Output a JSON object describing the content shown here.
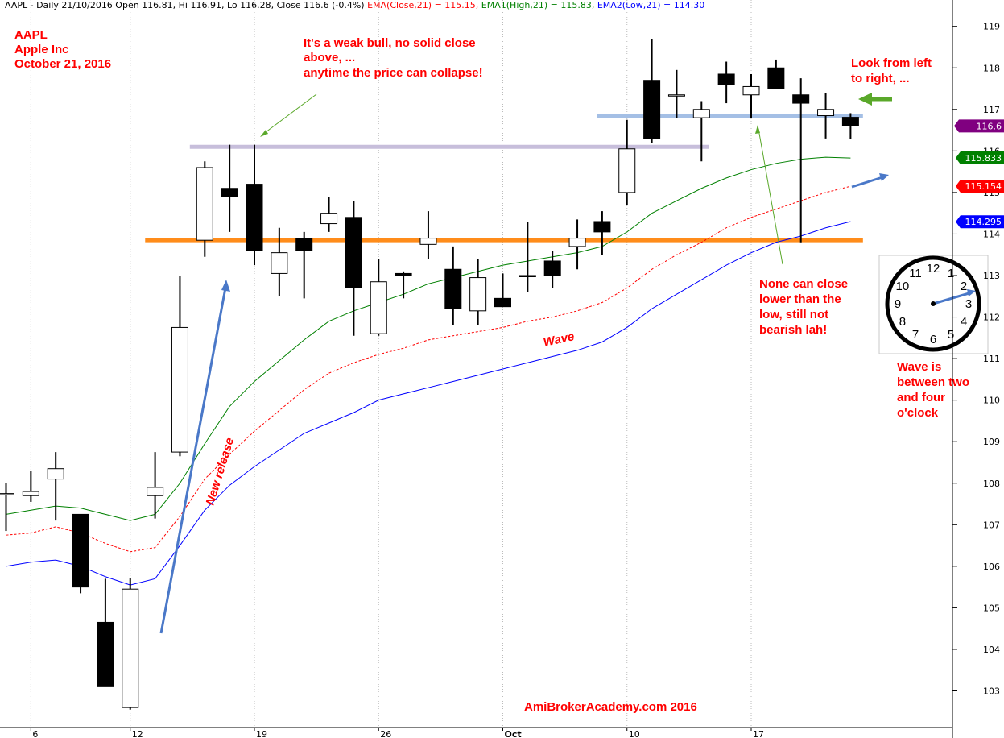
{
  "header": {
    "title": "AAPL - Daily 21/10/2016 Open 116.81, Hi 116.91, Lo 116.28, Close 116.6 (-0.4%)",
    "ema_close": "EMA(Close,21) = 115.15,",
    "ema_high": "EMA1(High,21) = 115.83,",
    "ema_low": "EMA2(Low,21) = 114.30",
    "colors": {
      "ema_close": "#ff0000",
      "ema_high": "#008000",
      "ema_low": "#0000ff"
    }
  },
  "annotations": {
    "ticker": [
      "AAPL",
      "Apple Inc",
      "October 21, 2016"
    ],
    "weak_bull": [
      "It's a weak bull, no solid close",
      "above, ...",
      "anytime the price can collapse!"
    ],
    "look": [
      "Look from left",
      "to right, ..."
    ],
    "none_close": [
      "None can close",
      "lower than the",
      "low, still not",
      "bearish lah!"
    ],
    "wave_label": "Wave",
    "new_release": "New release",
    "wave_clock": [
      "Wave is",
      "between two",
      "and four",
      "o'clock"
    ],
    "watermark": "AmiBrokerAcademy.com  2016"
  },
  "badges": {
    "close": {
      "text": "116.6",
      "color": "#800080"
    },
    "ema_high": {
      "text": "115.833",
      "color": "#008000"
    },
    "ema_close": {
      "text": "115.154",
      "color": "#ff0000"
    },
    "ema_low": {
      "text": "114.295",
      "color": "#0000ff"
    }
  },
  "clock": {
    "numerals": [
      "12",
      "1",
      "2",
      "3",
      "4",
      "5",
      "6",
      "7",
      "8",
      "9",
      "10",
      "11"
    ]
  },
  "chart_data": {
    "type": "candlestick",
    "ylim": [
      102.3,
      119.4
    ],
    "y_ticks": [
      103,
      104,
      105,
      106,
      107,
      108,
      109,
      110,
      111,
      112,
      113,
      114,
      115,
      116,
      117,
      118,
      119
    ],
    "x_tick_labels": [
      {
        "label": "6",
        "index": 1
      },
      {
        "label": "12",
        "index": 5
      },
      {
        "label": "19",
        "index": 10
      },
      {
        "label": "26",
        "index": 15
      },
      {
        "label": "Oct",
        "index": 20
      },
      {
        "label": "10",
        "index": 25
      },
      {
        "label": "17",
        "index": 30
      }
    ],
    "candles": [
      {
        "o": 107.75,
        "h": 108.0,
        "l": 106.85,
        "c": 107.75
      },
      {
        "o": 107.7,
        "h": 108.3,
        "l": 107.55,
        "c": 107.8
      },
      {
        "o": 108.1,
        "h": 108.75,
        "l": 107.1,
        "c": 108.35
      },
      {
        "o": 107.25,
        "h": 107.25,
        "l": 105.35,
        "c": 105.5
      },
      {
        "o": 104.65,
        "h": 105.7,
        "l": 103.1,
        "c": 103.1
      },
      {
        "o": 102.6,
        "h": 105.72,
        "l": 102.55,
        "c": 105.45
      },
      {
        "o": 107.7,
        "h": 108.75,
        "l": 107.15,
        "c": 107.9
      },
      {
        "o": 108.75,
        "h": 113.0,
        "l": 108.65,
        "c": 111.75
      },
      {
        "o": 113.85,
        "h": 115.75,
        "l": 113.45,
        "c": 115.6
      },
      {
        "o": 115.1,
        "h": 116.15,
        "l": 114.05,
        "c": 114.9
      },
      {
        "o": 115.2,
        "h": 116.15,
        "l": 113.25,
        "c": 113.6
      },
      {
        "o": 113.05,
        "h": 114.15,
        "l": 112.5,
        "c": 113.55
      },
      {
        "o": 113.9,
        "h": 114.05,
        "l": 112.45,
        "c": 113.6
      },
      {
        "o": 114.25,
        "h": 114.9,
        "l": 114.05,
        "c": 114.5
      },
      {
        "o": 114.4,
        "h": 114.8,
        "l": 111.55,
        "c": 112.7
      },
      {
        "o": 111.6,
        "h": 113.4,
        "l": 111.55,
        "c": 112.85
      },
      {
        "o": 113.05,
        "h": 113.1,
        "l": 112.45,
        "c": 113.0
      },
      {
        "o": 113.75,
        "h": 114.55,
        "l": 113.4,
        "c": 113.9
      },
      {
        "o": 113.15,
        "h": 113.7,
        "l": 111.8,
        "c": 112.2
      },
      {
        "o": 112.15,
        "h": 113.4,
        "l": 111.8,
        "c": 112.95
      },
      {
        "o": 112.45,
        "h": 113.05,
        "l": 112.3,
        "c": 112.25
      },
      {
        "o": 113.0,
        "h": 114.3,
        "l": 112.6,
        "c": 113.0
      },
      {
        "o": 113.35,
        "h": 113.6,
        "l": 112.7,
        "c": 113.0
      },
      {
        "o": 113.7,
        "h": 114.35,
        "l": 113.15,
        "c": 113.9
      },
      {
        "o": 114.3,
        "h": 114.55,
        "l": 113.5,
        "c": 114.05
      },
      {
        "o": 115.0,
        "h": 116.75,
        "l": 114.7,
        "c": 116.05
      },
      {
        "o": 117.7,
        "h": 118.7,
        "l": 116.2,
        "c": 116.3
      },
      {
        "o": 117.35,
        "h": 117.95,
        "l": 116.8,
        "c": 117.35
      },
      {
        "o": 116.8,
        "h": 117.2,
        "l": 115.75,
        "c": 117.0
      },
      {
        "o": 117.85,
        "h": 118.15,
        "l": 117.15,
        "c": 117.6
      },
      {
        "o": 117.35,
        "h": 117.85,
        "l": 116.8,
        "c": 117.55
      },
      {
        "o": 118.0,
        "h": 118.2,
        "l": 117.5,
        "c": 117.5
      },
      {
        "o": 117.35,
        "h": 117.75,
        "l": 113.8,
        "c": 117.15
      },
      {
        "o": 116.85,
        "h": 117.4,
        "l": 116.3,
        "c": 117.0
      },
      {
        "o": 116.81,
        "h": 116.91,
        "l": 116.28,
        "c": 116.6
      }
    ],
    "series": [
      {
        "label": "EMA(Close,21)",
        "color": "#ff0000",
        "values": [
          106.75,
          106.8,
          106.95,
          106.8,
          106.55,
          106.35,
          106.45,
          107.2,
          108.1,
          108.7,
          109.25,
          109.75,
          110.25,
          110.65,
          110.9,
          111.1,
          111.25,
          111.45,
          111.55,
          111.65,
          111.75,
          111.9,
          112.0,
          112.15,
          112.35,
          112.7,
          113.15,
          113.5,
          113.8,
          114.15,
          114.4,
          114.6,
          114.8,
          115.0,
          115.15
        ]
      },
      {
        "label": "EMA1(High,21)",
        "color": "#008000",
        "values": [
          107.25,
          107.35,
          107.45,
          107.4,
          107.25,
          107.1,
          107.25,
          108.0,
          108.95,
          109.85,
          110.45,
          110.95,
          111.45,
          111.9,
          112.15,
          112.35,
          112.55,
          112.8,
          112.95,
          113.1,
          113.25,
          113.35,
          113.45,
          113.55,
          113.7,
          114.05,
          114.5,
          114.8,
          115.1,
          115.35,
          115.55,
          115.7,
          115.8,
          115.85,
          115.83
        ]
      },
      {
        "label": "EMA2(Low,21)",
        "color": "#0000ff",
        "values": [
          106.0,
          106.1,
          106.15,
          106.0,
          105.75,
          105.55,
          105.7,
          106.5,
          107.35,
          107.95,
          108.4,
          108.8,
          109.2,
          109.45,
          109.7,
          110.0,
          110.15,
          110.3,
          110.45,
          110.6,
          110.75,
          110.9,
          111.05,
          111.2,
          111.4,
          111.75,
          112.2,
          112.55,
          112.9,
          113.25,
          113.55,
          113.8,
          113.95,
          114.15,
          114.3
        ]
      }
    ],
    "support_resistance": [
      {
        "name": "orange-support",
        "price": 113.85,
        "from": 5.6,
        "to": 34.5,
        "color": "#ff8c1a"
      },
      {
        "name": "grey-resistance",
        "price": 116.1,
        "from": 7.4,
        "to": 28.3,
        "color": "#c7bedb"
      },
      {
        "name": "blue-resistance",
        "price": 116.85,
        "from": 23.8,
        "to": 34.5,
        "color": "#a4bfe5"
      }
    ]
  }
}
